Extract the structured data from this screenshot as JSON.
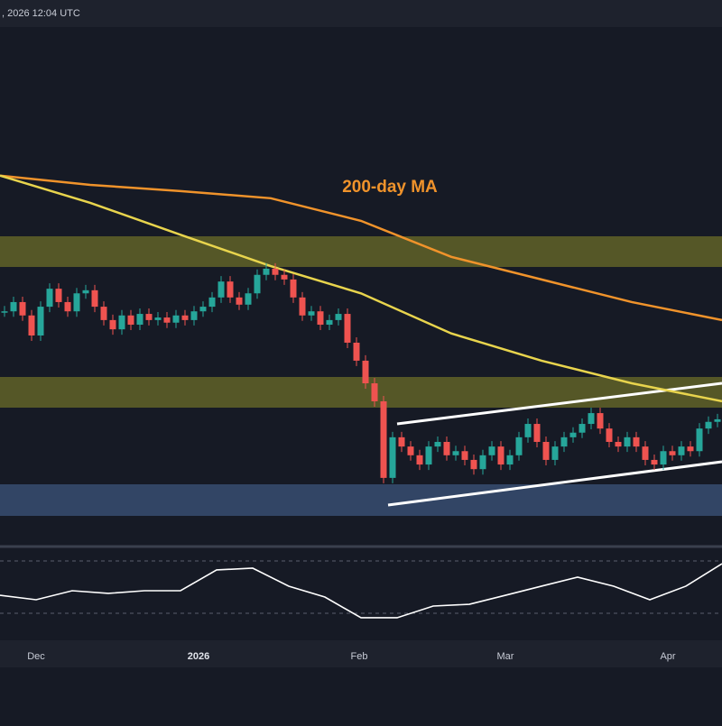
{
  "chart_data": {
    "type": "candlestick",
    "timestamp": ", 2026 12:04 UTC",
    "annotation": "200-day MA",
    "x_axis_labels": [
      "Dec",
      "2026",
      "Feb",
      "Mar",
      "Apr"
    ],
    "ylim": [
      0,
      100
    ],
    "up_color": "#26a69a",
    "down_color": "#ef5350",
    "closes": [
      44.7,
      46.5,
      43.9,
      40,
      45.6,
      49.1,
      46.5,
      44.7,
      48.2,
      48.8,
      45.6,
      43,
      41.2,
      43.9,
      42.1,
      44.2,
      43,
      43.5,
      42.5,
      43.9,
      43,
      44.7,
      45.6,
      47.4,
      50.5,
      47.4,
      46,
      48.2,
      51.8,
      53,
      51.8,
      50.9,
      47.4,
      43.9,
      44.7,
      42.1,
      43,
      44.2,
      38.6,
      35.1,
      30.7,
      27.2,
      12.3,
      20.2,
      18.4,
      16.7,
      14.9,
      18.4,
      19.3,
      16.7,
      17.5,
      15.8,
      14,
      16.7,
      18.4,
      14.9,
      16.7,
      20.2,
      22.8,
      19.3,
      15.8,
      18.4,
      20.2,
      21.1,
      22.8,
      24.9,
      21.9,
      19.3,
      18.4,
      20.2,
      18.4,
      15.8,
      14.9,
      17.5,
      16.7,
      18.4,
      17.5,
      21.9,
      23.2,
      23.7
    ],
    "moving_averages": [
      {
        "color": "#f0932b",
        "values": [
          71.1,
          69.3,
          68.1,
          66.7,
          62.3,
          55.3,
          50.9,
          46.5,
          43
        ]
      },
      {
        "color": "#e8d44d",
        "values": [
          71.1,
          65.8,
          59.6,
          53.5,
          48.2,
          40.4,
          35.1,
          30.7,
          27.2
        ]
      }
    ],
    "rsi": {
      "color": "#ffffff",
      "values": [
        44.4,
        38.9,
        50,
        46.7,
        50,
        50,
        75.6,
        77.8,
        55.6,
        42.2,
        16.7,
        16.7,
        31.1,
        33.3,
        44.4,
        55.6,
        66.7,
        55.6,
        38.9,
        55.6,
        83.3
      ]
    }
  }
}
